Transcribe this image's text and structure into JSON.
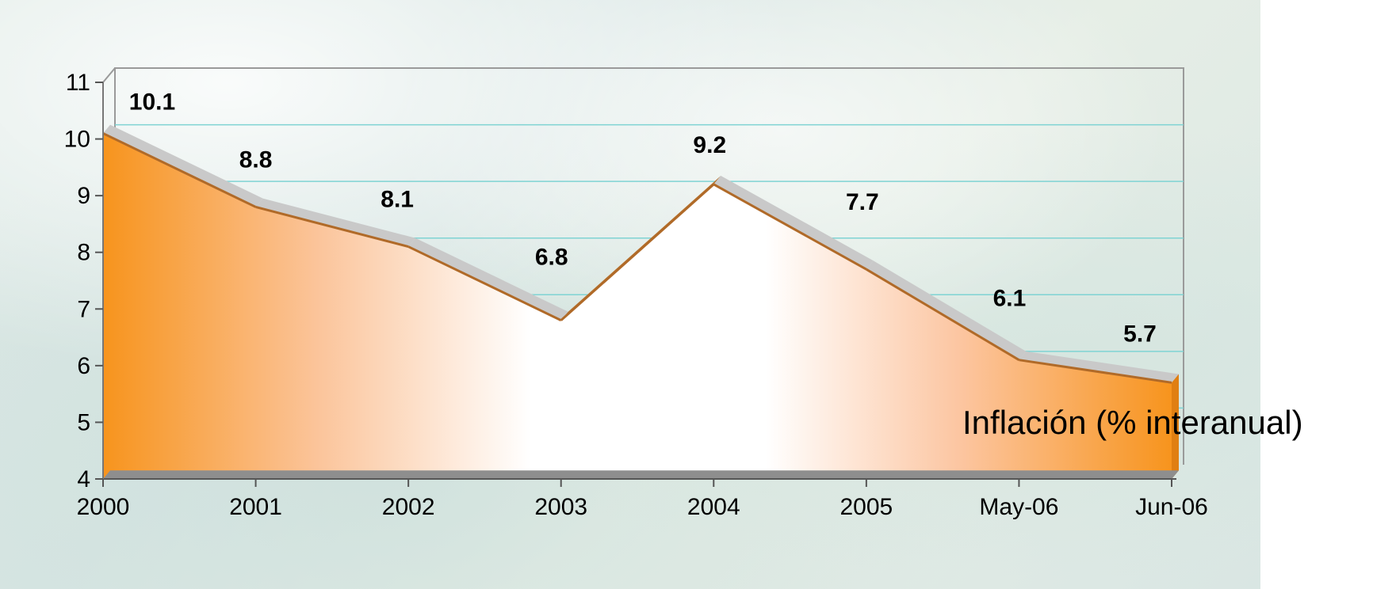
{
  "chart_data": {
    "type": "area",
    "title": "",
    "xlabel": "",
    "ylabel": "",
    "categories": [
      "2000",
      "2001",
      "2002",
      "2003",
      "2004",
      "2005",
      "May-06",
      "Jun-06"
    ],
    "series": [
      {
        "name": "Inflación  (% interanual)",
        "values": [
          10.1,
          8.8,
          8.1,
          6.8,
          9.2,
          7.7,
          6.1,
          5.7
        ]
      }
    ],
    "data_labels": [
      "10.1",
      "8.8",
      "8.1",
      "6.8",
      "9.2",
      "7.7",
      "6.1",
      "5.7"
    ],
    "y_ticks": [
      "4",
      "5",
      "6",
      "7",
      "8",
      "9",
      "10",
      "11"
    ],
    "ylim": [
      4,
      11
    ],
    "grid": true,
    "style": "3d",
    "colors": {
      "fill_edge": "#f7941d",
      "fill_center": "#ffffff",
      "ridge_light": "#c8c8c8",
      "ridge_dark": "#b8732e",
      "gridline": "#7fd3d3",
      "wall": "#9a9a9a"
    }
  }
}
